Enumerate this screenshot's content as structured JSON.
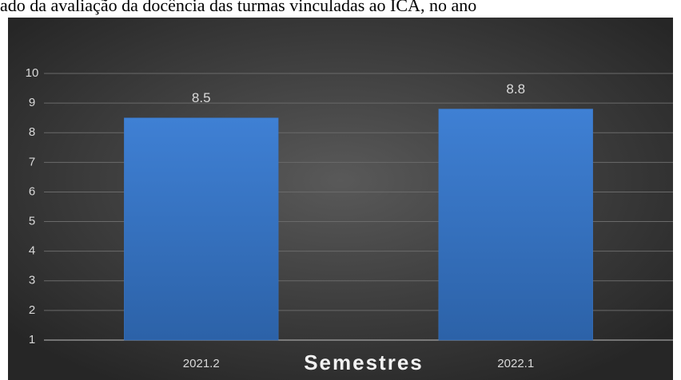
{
  "header": {
    "title": "ado da avaliação da docência das turmas vinculadas ao ICA, no ano"
  },
  "chart_data": {
    "type": "bar",
    "x_label": "Semestres",
    "categories": [
      "2021.2",
      "2022.1"
    ],
    "values": [
      8.5,
      8.8
    ],
    "color": "#3a78c9",
    "ylim": [
      1,
      10
    ],
    "yticks": [
      1,
      2,
      3,
      4,
      5,
      6,
      7,
      8,
      9,
      10
    ],
    "grid": true
  }
}
